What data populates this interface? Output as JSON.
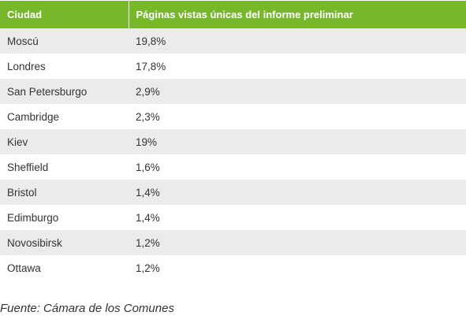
{
  "table": {
    "headers": [
      "Ciudad",
      "Páginas vistas únicas del informe preliminar"
    ],
    "rows": [
      [
        "Moscú",
        "19,8%"
      ],
      [
        "Londres",
        "17,8%"
      ],
      [
        "San Petersburgo",
        "2,9%"
      ],
      [
        "Cambridge",
        "2,3%"
      ],
      [
        "Kiev",
        "19%"
      ],
      [
        "Sheffield",
        "1,6%"
      ],
      [
        "Bristol",
        "1,4%"
      ],
      [
        "Edimburgo",
        "1,4%"
      ],
      [
        "Novosibirsk",
        "1,2%"
      ],
      [
        "Ottawa",
        "1,2%"
      ]
    ]
  },
  "source": "Fuente: Cámara de los Comunes",
  "colors": {
    "header_bg": "#76b82a",
    "header_text": "#ffffff",
    "stripe": "#ebebeb"
  }
}
